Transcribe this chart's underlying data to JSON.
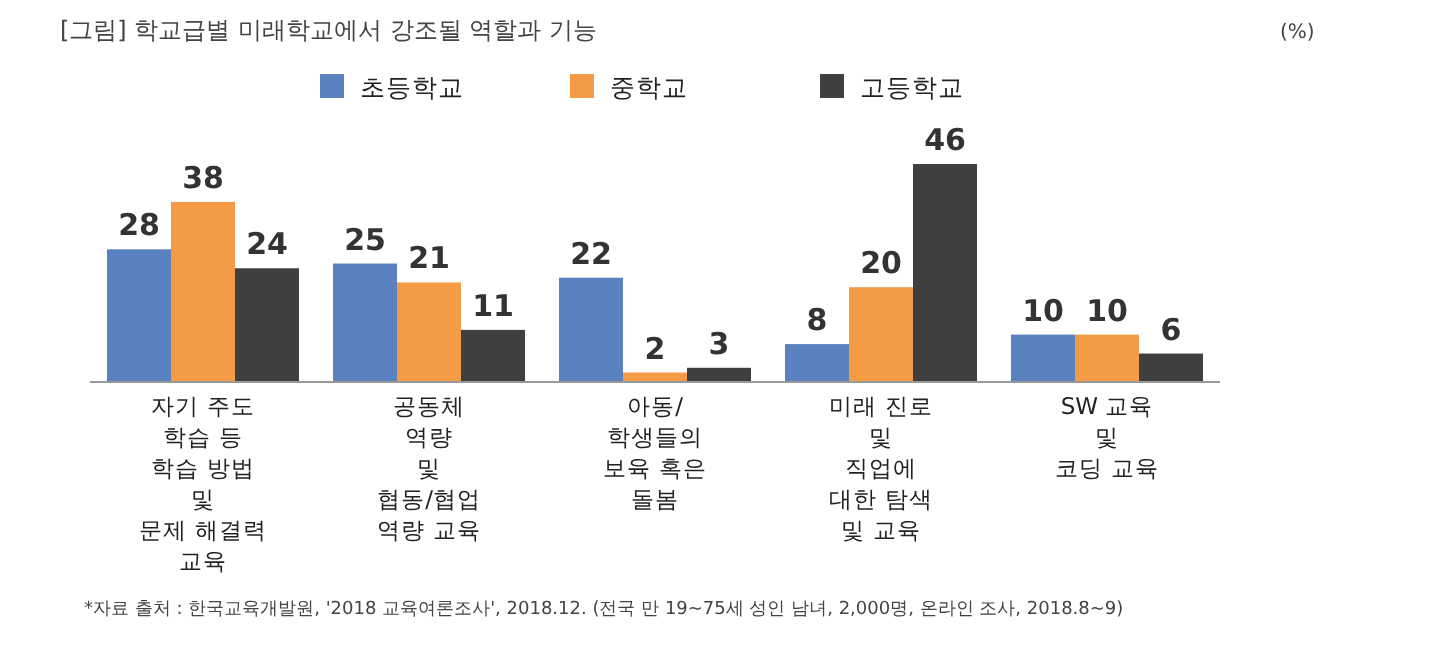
{
  "chart_data": {
    "type": "bar",
    "title": "[그림] 학교급별 미래학교에서 강조될 역할과 기능",
    "categories": [
      "자기 주도\n학습 등\n학습 방법\n및\n문제 해결력\n교육",
      "공동체\n역량\n및\n협동/협업\n역량 교육",
      "아동/\n학생들의\n보육 혹은\n돌봄",
      "미래 진로\n및\n직업에\n대한 탐색\n및 교육",
      "SW 교육\n및\n코딩 교육"
    ],
    "series": [
      {
        "name": "초등학교",
        "color": "#5b82c0",
        "values": [
          28,
          25,
          22,
          8,
          10
        ]
      },
      {
        "name": "중학교",
        "color": "#f59a45",
        "values": [
          38,
          21,
          2,
          20,
          10
        ]
      },
      {
        "name": "고등학교",
        "color": "#3f3f3f",
        "values": [
          24,
          11,
          3,
          46,
          6
        ]
      }
    ],
    "data_labels": true,
    "legend": "top",
    "annotations": [
      "(%)",
      "*자료 출처 : 한국교육개발원, '2018 교육여론조사', 2018.12. (전국 만 19~75세 성인 남녀, 2,000명, 온라인 조사, 2018.8~9)"
    ]
  }
}
